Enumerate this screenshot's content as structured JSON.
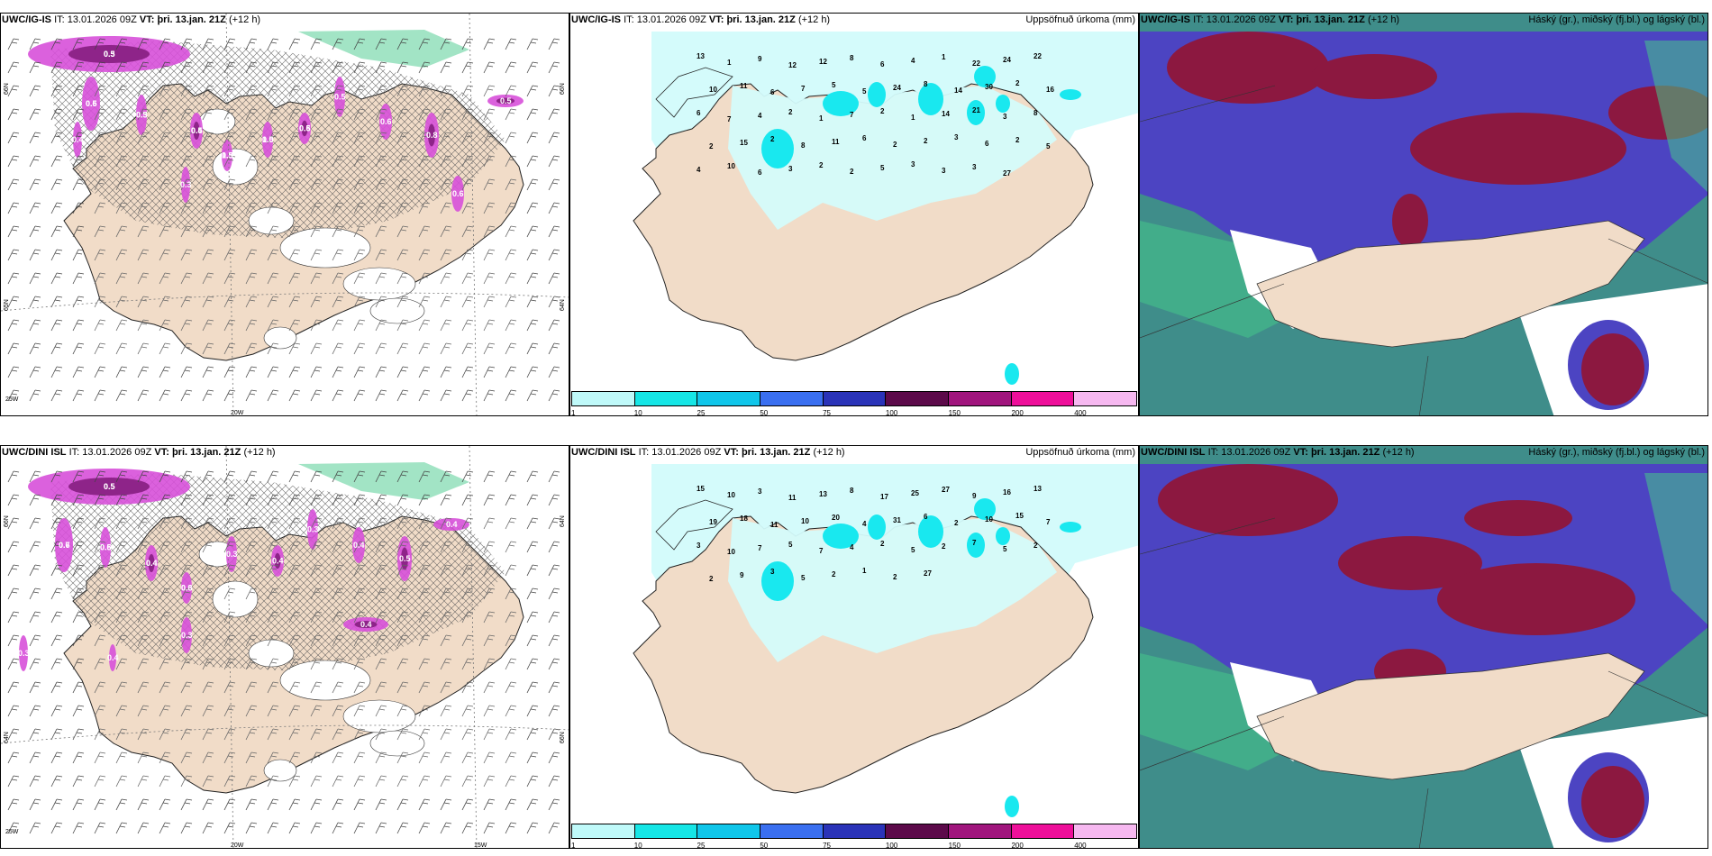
{
  "rows": [
    {
      "left": {
        "model": "UWC/IG-IS",
        "it_label": "IT:",
        "it": "13.01.2026 09Z",
        "vt_label": "VT:",
        "vt": "þri. 13.jan. 21Z",
        "lead": "(+12 h)",
        "lat_labels": [
          "66N",
          "65N",
          "64N",
          "66N"
        ],
        "lon_labels": [
          "25W",
          "20W"
        ],
        "contour_labels": [
          "0.5",
          "0.6",
          "0.5",
          "0.5",
          "1.5",
          "1.0",
          "0.6",
          "0.5",
          "0.6",
          "0.8",
          "0.6",
          "0.3",
          "0.5",
          "0.4",
          "0.3",
          "0.5",
          "0.3",
          "0.4",
          "0.3",
          "0.5",
          "0.5"
        ]
      },
      "mid": {
        "model": "UWC/IG-IS",
        "it_label": "IT:",
        "it": "13.01.2026 09Z",
        "vt_label": "VT:",
        "vt": "þri. 13.jan. 21Z",
        "lead": "(+12 h)",
        "title_right": "Uppsöfnuð úrkoma (mm)",
        "numbers": [
          "13",
          "1",
          "9",
          "12",
          "12",
          "8",
          "6",
          "4",
          "1",
          "22",
          "24",
          "22",
          "10",
          "11",
          "6",
          "7",
          "5",
          "5",
          "24",
          "8",
          "14",
          "30",
          "2",
          "16",
          "6",
          "7",
          "4",
          "2",
          "1",
          "7",
          "2",
          "1",
          "14",
          "21",
          "3",
          "8",
          "2",
          "15",
          "2",
          "8",
          "11",
          "6",
          "2",
          "2",
          "3",
          "6",
          "2",
          "5",
          "4",
          "10",
          "6",
          "3",
          "2",
          "2",
          "5",
          "3",
          "3",
          "3",
          "27"
        ]
      },
      "right": {
        "model": "UWC/IG-IS",
        "it_label": "IT:",
        "it": "13.01.2026 09Z",
        "vt_label": "VT:",
        "vt": "þri. 13.jan. 21Z",
        "lead": "(+12 h)",
        "title_right": "Háský (gr.), miðský (fj.bl.) og lágský (bl.)"
      }
    },
    {
      "left": {
        "model": "UWC/DINI ISL",
        "it_label": "IT:",
        "it": "13.01.2026 09Z",
        "vt_label": "VT:",
        "vt": "þri. 13.jan. 21Z",
        "lead": "(+12 h)",
        "lat_labels": [
          "66N",
          "64N",
          "66N",
          "64N"
        ],
        "lon_labels": [
          "25W",
          "20W",
          "15W"
        ],
        "contour_labels": [
          "0.5",
          "0.6",
          "0.5",
          "0.4",
          "0.6",
          "0.3",
          "0.4",
          "0.3",
          "0.4",
          "0.5",
          "0.4",
          "0.3",
          "0.4",
          "0.3",
          "0.4",
          "0.5",
          "0.7",
          "0.6",
          "0.4",
          "0.3"
        ]
      },
      "mid": {
        "model": "UWC/DINI ISL",
        "it_label": "IT:",
        "it": "13.01.2026 09Z",
        "vt_label": "VT:",
        "vt": "þri. 13.jan. 21Z",
        "lead": "(+12 h)",
        "title_right": "Uppsöfnuð úrkoma (mm)",
        "numbers": [
          "15",
          "10",
          "3",
          "11",
          "13",
          "8",
          "17",
          "25",
          "27",
          "9",
          "16",
          "13",
          "19",
          "18",
          "11",
          "10",
          "20",
          "4",
          "31",
          "6",
          "2",
          "10",
          "15",
          "7",
          "3",
          "10",
          "7",
          "5",
          "7",
          "4",
          "2",
          "5",
          "2",
          "7",
          "5",
          "2",
          "2",
          "9",
          "3",
          "5",
          "2",
          "1",
          "2",
          "27"
        ]
      },
      "right": {
        "model": "UWC/DINI ISL",
        "it_label": "IT:",
        "it": "13.01.2026 09Z",
        "vt_label": "VT:",
        "vt": "þri. 13.jan. 21Z",
        "lead": "(+12 h)",
        "title_right": "Háský (gr.), miðský (fj.bl.) og lágský (bl.)"
      }
    }
  ],
  "legend": {
    "ticks": [
      "1",
      "10",
      "25",
      "50",
      "75",
      "100",
      "150",
      "200",
      "400"
    ],
    "colors": [
      "#bff9f9",
      "#16e6e6",
      "#10c6ea",
      "#3a6ff0",
      "#2a33b8",
      "#5c0a4a",
      "#a0157d",
      "#ee0f9a",
      "#f6b8f0"
    ]
  },
  "colors": {
    "land": "#f1dcc8",
    "snow_area": "#d4fbfb",
    "precip_cyan": "#19e8ef",
    "magenta": "#d750d9",
    "dark_magenta": "#8e2489",
    "high_cloud_green": "#46c98b",
    "mid_cloud_red": "#8c1840",
    "low_cloud_blue": "#4c44c2",
    "teal": "#3f8d8a"
  }
}
